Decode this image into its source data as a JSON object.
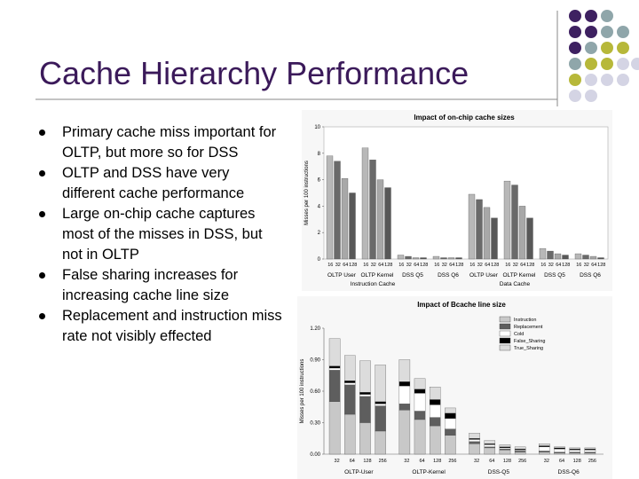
{
  "slide": {
    "title": "Cache Hierarchy Performance",
    "bullets": [
      "Primary cache miss important for OLTP, but more so for DSS",
      "OLTP and DSS have very different cache performance",
      "Large on-chip cache captures most of the misses in DSS, but not in OLTP",
      "False sharing increases for increasing cache line size",
      "Replacement and instruction miss rate not visibly effected"
    ]
  },
  "charts": [
    {
      "type": "grouped-bar",
      "title": "Impact of on-chip cache sizes",
      "y_label": "Misses per 100 instructions",
      "ylim": [
        0,
        10
      ],
      "yticks": [
        0,
        2,
        4,
        6,
        8,
        10
      ],
      "sizes": [
        "16",
        "32",
        "64",
        "128"
      ],
      "colors": [
        "#b8b8b8",
        "#6a6a6a",
        "#a8a8a8",
        "#585858"
      ],
      "sections": [
        {
          "name": "Instruction Cache",
          "groups": [
            {
              "name": "OLTP User",
              "values": [
                7.8,
                7.4,
                6.1,
                5.0
              ]
            },
            {
              "name": "OLTP Kernel",
              "values": [
                8.4,
                7.5,
                6.0,
                5.4
              ]
            },
            {
              "name": "DSS Q5",
              "values": [
                0.3,
                0.2,
                0.1,
                0.1
              ]
            },
            {
              "name": "DSS Q6",
              "values": [
                0.2,
                0.1,
                0.1,
                0.1
              ]
            }
          ]
        },
        {
          "name": "Data Cache",
          "groups": [
            {
              "name": "OLTP User",
              "values": [
                4.9,
                4.5,
                3.9,
                3.1
              ]
            },
            {
              "name": "OLTP Kernel",
              "values": [
                5.9,
                5.6,
                4.0,
                3.1
              ]
            },
            {
              "name": "DSS Q5",
              "values": [
                0.8,
                0.6,
                0.4,
                0.3
              ]
            },
            {
              "name": "DSS Q6",
              "values": [
                0.4,
                0.3,
                0.2,
                0.1
              ]
            }
          ]
        }
      ]
    },
    {
      "type": "stacked-bar",
      "title": "Impact of Bcache line size",
      "y_label": "Misses per 100 instructions",
      "ylim": [
        0,
        1.2
      ],
      "yticks": [
        {
          "value": 0,
          "label": "0.00"
        },
        {
          "value": 0.3,
          "label": "0.30"
        },
        {
          "value": 0.6,
          "label": "0.60"
        },
        {
          "value": 0.9,
          "label": "0.90"
        },
        {
          "value": 1.2,
          "label": "1.20"
        }
      ],
      "line_sizes": [
        "32",
        "64",
        "128",
        "256"
      ],
      "components": [
        {
          "name": "Instruction",
          "color": "#c8c8c8"
        },
        {
          "name": "Replacement",
          "color": "#5e5e5e"
        },
        {
          "name": "Cold",
          "color": "#ffffff"
        },
        {
          "name": "False_Sharing",
          "color": "#000000"
        },
        {
          "name": "True_Sharing",
          "color": "#dcdcdc"
        }
      ],
      "groups": [
        {
          "name": "OLTP-User",
          "bars": [
            [
              0.5,
              0.3,
              0.02,
              0.02,
              0.26
            ],
            [
              0.38,
              0.28,
              0.02,
              0.02,
              0.24
            ],
            [
              0.3,
              0.25,
              0.02,
              0.02,
              0.3
            ],
            [
              0.22,
              0.24,
              0.02,
              0.02,
              0.35
            ]
          ]
        },
        {
          "name": "OLTP-Kernel",
          "bars": [
            [
              0.42,
              0.06,
              0.17,
              0.04,
              0.21
            ],
            [
              0.33,
              0.08,
              0.17,
              0.04,
              0.1
            ],
            [
              0.27,
              0.08,
              0.12,
              0.05,
              0.12
            ],
            [
              0.18,
              0.06,
              0.1,
              0.05,
              0.05
            ]
          ]
        },
        {
          "name": "DSS-Q5",
          "bars": [
            [
              0.1,
              0.02,
              0.02,
              0.01,
              0.05
            ],
            [
              0.06,
              0.01,
              0.02,
              0.01,
              0.03
            ],
            [
              0.04,
              0.01,
              0.01,
              0.01,
              0.02
            ],
            [
              0.02,
              0.01,
              0.01,
              0.01,
              0.02
            ]
          ]
        },
        {
          "name": "DSS-Q6",
          "bars": [
            [
              0.02,
              0.01,
              0.04,
              0.01,
              0.02
            ],
            [
              0.01,
              0.01,
              0.03,
              0.01,
              0.01
            ],
            [
              0.01,
              0.01,
              0.02,
              0.01,
              0.01
            ],
            [
              0.01,
              0.01,
              0.02,
              0.01,
              0.01
            ]
          ]
        }
      ]
    }
  ]
}
